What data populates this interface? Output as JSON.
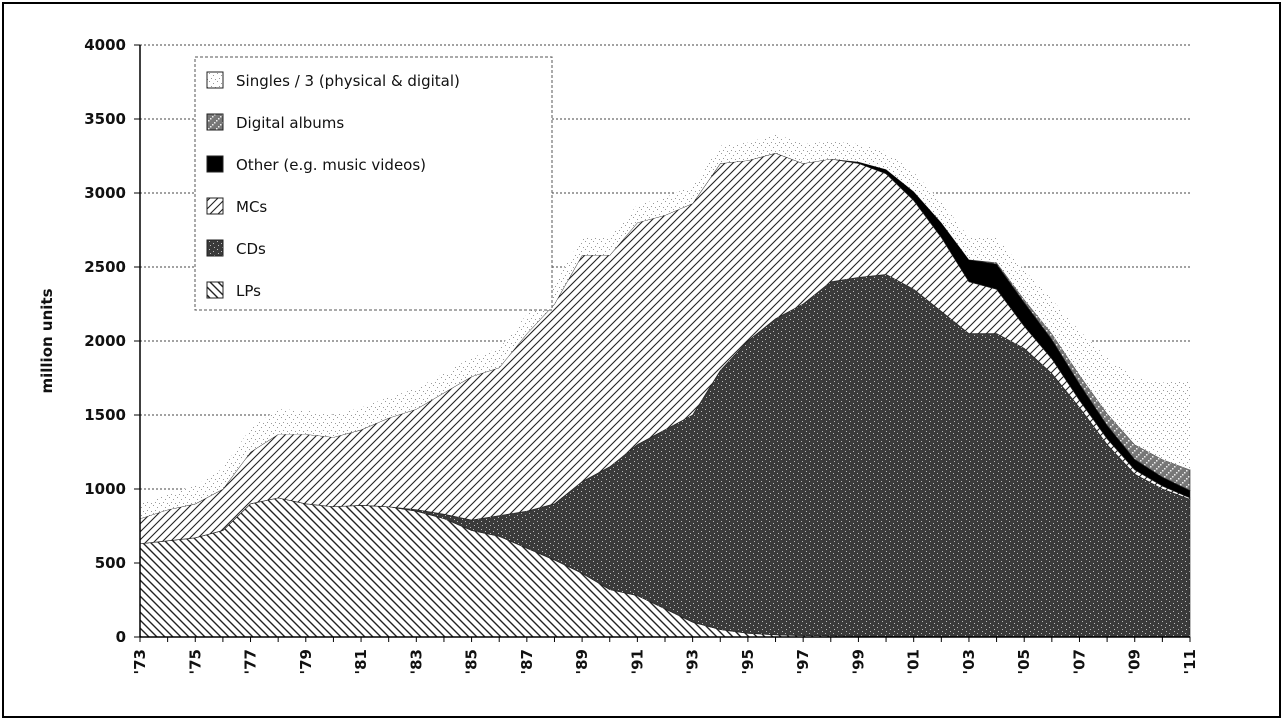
{
  "chart_data": {
    "type": "stacked-area",
    "ylabel": "million units",
    "categories": [
      "'73",
      null,
      "'75",
      null,
      "'77",
      null,
      "'79",
      null,
      "'81",
      null,
      "'83",
      null,
      "'85",
      null,
      "'87",
      null,
      "'89",
      null,
      "'91",
      null,
      "'93",
      null,
      "'95",
      null,
      "'97",
      null,
      "'99",
      null,
      "'01",
      null,
      "'03",
      null,
      "'05",
      null,
      "'07",
      null,
      "'09",
      null,
      "'11"
    ],
    "ylim": [
      0,
      4000
    ],
    "yticks": [
      0,
      500,
      1000,
      1500,
      2000,
      2500,
      3000,
      3500,
      4000
    ],
    "grid": true,
    "legend": "upper left",
    "series": [
      {
        "name": "LPs",
        "color": "#222222",
        "hatch": "backslash",
        "values": [
          630,
          650,
          670,
          720,
          900,
          940,
          900,
          880,
          890,
          880,
          850,
          800,
          720,
          680,
          600,
          520,
          430,
          320,
          280,
          190,
          100,
          50,
          25,
          15,
          10,
          8,
          6,
          5,
          4,
          3,
          3,
          3,
          2,
          2,
          2,
          2,
          2,
          2,
          2
        ]
      },
      {
        "name": "CDs",
        "color": "#3a3a3a",
        "hatch": "dots",
        "values": [
          0,
          0,
          0,
          0,
          0,
          0,
          0,
          0,
          0,
          0,
          10,
          30,
          70,
          140,
          250,
          380,
          620,
          830,
          1020,
          1210,
          1400,
          1750,
          1975,
          2135,
          2240,
          2392,
          2424,
          2445,
          2346,
          2197,
          2047,
          2047,
          1948,
          1778,
          1548,
          1298,
          1098,
          998,
          928
        ]
      },
      {
        "name": "MCs",
        "color": "#222222",
        "hatch": "slash",
        "values": [
          170,
          210,
          230,
          280,
          350,
          430,
          470,
          470,
          510,
          600,
          680,
          820,
          970,
          1000,
          1200,
          1350,
          1530,
          1430,
          1500,
          1450,
          1430,
          1400,
          1220,
          1120,
          950,
          830,
          770,
          680,
          600,
          500,
          350,
          300,
          150,
          100,
          50,
          40,
          30,
          20,
          10
        ]
      },
      {
        "name": "Other (e.g. music videos)",
        "color": "#000000",
        "hatch": "solid",
        "values": [
          0,
          0,
          0,
          0,
          0,
          0,
          0,
          0,
          0,
          0,
          0,
          0,
          0,
          0,
          0,
          0,
          0,
          0,
          0,
          0,
          0,
          0,
          0,
          0,
          0,
          0,
          10,
          30,
          60,
          100,
          150,
          170,
          160,
          130,
          110,
          90,
          70,
          60,
          50
        ]
      },
      {
        "name": "Digital albums",
        "color": "#777777",
        "hatch": "dense",
        "values": [
          0,
          0,
          0,
          0,
          0,
          0,
          0,
          0,
          0,
          0,
          0,
          0,
          0,
          0,
          0,
          0,
          0,
          0,
          0,
          0,
          0,
          0,
          0,
          0,
          0,
          0,
          0,
          0,
          0,
          0,
          0,
          10,
          20,
          40,
          60,
          80,
          100,
          120,
          140
        ]
      },
      {
        "name": "Singles / 3 (physical & digital)",
        "color": "#9a9a9a",
        "hatch": "sparse",
        "values": [
          100,
          110,
          120,
          140,
          160,
          170,
          160,
          150,
          150,
          140,
          140,
          130,
          130,
          130,
          130,
          130,
          120,
          120,
          120,
          120,
          120,
          120,
          120,
          130,
          130,
          120,
          120,
          120,
          130,
          140,
          150,
          170,
          200,
          230,
          300,
          380,
          450,
          520,
          600
        ]
      }
    ]
  }
}
